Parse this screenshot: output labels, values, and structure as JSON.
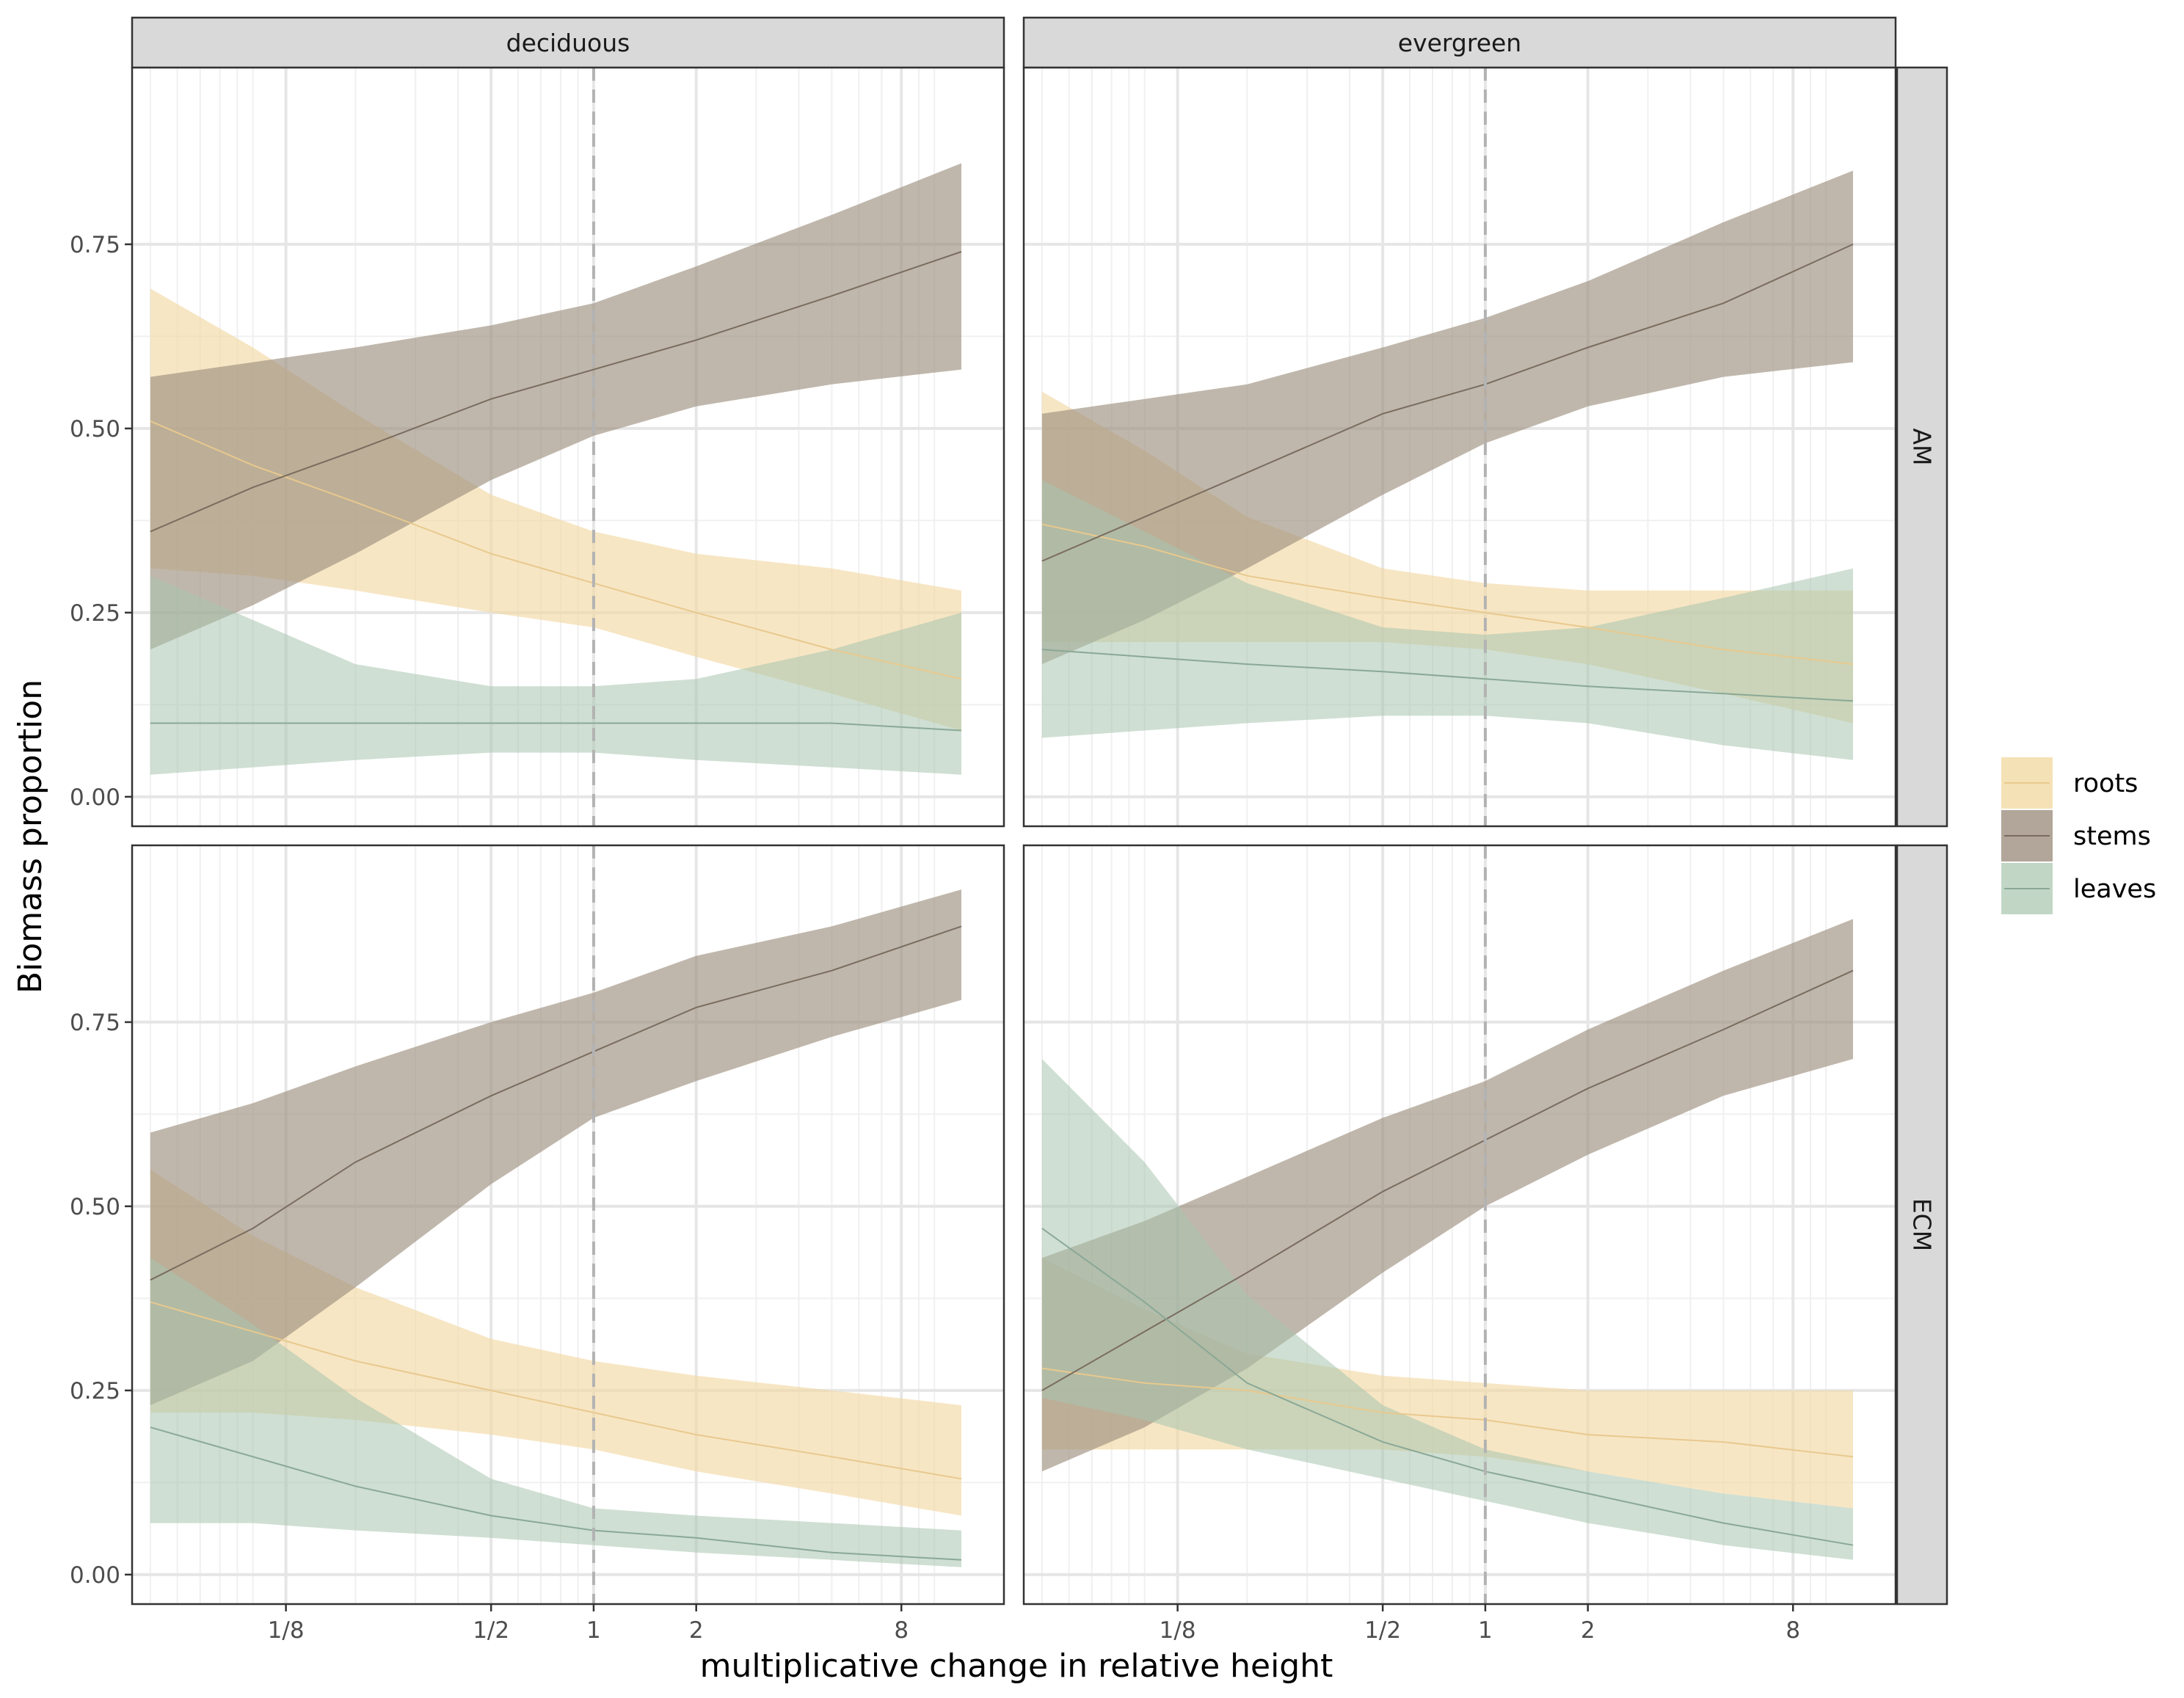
{
  "chart_data": {
    "type": "area",
    "facet_columns": [
      "deciduous",
      "evergreen"
    ],
    "facet_rows": [
      "AM",
      "ECM"
    ],
    "xlabel": "multiplicative change in relative height",
    "ylabel": "Biomass proportion",
    "x_scale": "log2",
    "x_ticks": [
      0.125,
      0.5,
      1,
      2,
      8
    ],
    "x_tick_labels": [
      "1/8",
      "1/2",
      "1",
      "2",
      "8"
    ],
    "xlim": [
      0.0442,
      16
    ],
    "y_ticks": [
      0,
      0.25,
      0.5,
      0.75
    ],
    "y_tick_labels": [
      "0.00",
      "0.25",
      "0.50",
      "0.75"
    ],
    "ylim": [
      -0.04,
      0.99
    ],
    "reference_line_x": 1,
    "grid": true,
    "legend_position": "right",
    "series_names": [
      "roots",
      "stems",
      "leaves"
    ],
    "colors": {
      "roots": "#f3d9a4",
      "roots_line": "#e8c98e",
      "stems": "#9e9080",
      "stems_line": "#7a6d5f",
      "leaves": "#a8c4ae",
      "leaves_line": "#8aa896"
    },
    "x": [
      0.05,
      0.1,
      0.2,
      0.5,
      1,
      2,
      5,
      12
    ],
    "panels": [
      {
        "column": "deciduous",
        "row": "AM",
        "series": [
          {
            "name": "roots",
            "fit": [
              0.51,
              0.45,
              0.4,
              0.33,
              0.29,
              0.25,
              0.2,
              0.16
            ],
            "lower": [
              0.31,
              0.3,
              0.28,
              0.25,
              0.23,
              0.19,
              0.14,
              0.09
            ],
            "upper": [
              0.69,
              0.61,
              0.52,
              0.41,
              0.36,
              0.33,
              0.31,
              0.28
            ]
          },
          {
            "name": "stems",
            "fit": [
              0.36,
              0.42,
              0.47,
              0.54,
              0.58,
              0.62,
              0.68,
              0.74
            ],
            "lower": [
              0.2,
              0.26,
              0.33,
              0.43,
              0.49,
              0.53,
              0.56,
              0.58
            ],
            "upper": [
              0.57,
              0.59,
              0.61,
              0.64,
              0.67,
              0.72,
              0.79,
              0.86
            ]
          },
          {
            "name": "leaves",
            "fit": [
              0.1,
              0.1,
              0.1,
              0.1,
              0.1,
              0.1,
              0.1,
              0.09
            ],
            "lower": [
              0.03,
              0.04,
              0.05,
              0.06,
              0.06,
              0.05,
              0.04,
              0.03
            ],
            "upper": [
              0.3,
              0.24,
              0.18,
              0.15,
              0.15,
              0.16,
              0.2,
              0.25
            ]
          }
        ]
      },
      {
        "column": "evergreen",
        "row": "AM",
        "series": [
          {
            "name": "roots",
            "fit": [
              0.37,
              0.34,
              0.3,
              0.27,
              0.25,
              0.23,
              0.2,
              0.18
            ],
            "lower": [
              0.21,
              0.21,
              0.21,
              0.21,
              0.2,
              0.18,
              0.14,
              0.1
            ],
            "upper": [
              0.55,
              0.47,
              0.38,
              0.31,
              0.29,
              0.28,
              0.28,
              0.28
            ]
          },
          {
            "name": "stems",
            "fit": [
              0.32,
              0.38,
              0.44,
              0.52,
              0.56,
              0.61,
              0.67,
              0.75
            ],
            "lower": [
              0.18,
              0.24,
              0.31,
              0.41,
              0.48,
              0.53,
              0.57,
              0.59
            ],
            "upper": [
              0.52,
              0.54,
              0.56,
              0.61,
              0.65,
              0.7,
              0.78,
              0.85
            ]
          },
          {
            "name": "leaves",
            "fit": [
              0.2,
              0.19,
              0.18,
              0.17,
              0.16,
              0.15,
              0.14,
              0.13
            ],
            "lower": [
              0.08,
              0.09,
              0.1,
              0.11,
              0.11,
              0.1,
              0.07,
              0.05
            ],
            "upper": [
              0.43,
              0.36,
              0.29,
              0.23,
              0.22,
              0.23,
              0.27,
              0.31
            ]
          }
        ]
      },
      {
        "column": "deciduous",
        "row": "ECM",
        "series": [
          {
            "name": "roots",
            "fit": [
              0.37,
              0.33,
              0.29,
              0.25,
              0.22,
              0.19,
              0.16,
              0.13
            ],
            "lower": [
              0.22,
              0.22,
              0.21,
              0.19,
              0.17,
              0.14,
              0.11,
              0.08
            ],
            "upper": [
              0.55,
              0.46,
              0.39,
              0.32,
              0.29,
              0.27,
              0.25,
              0.23
            ]
          },
          {
            "name": "stems",
            "fit": [
              0.4,
              0.47,
              0.56,
              0.65,
              0.71,
              0.77,
              0.82,
              0.88
            ],
            "lower": [
              0.23,
              0.29,
              0.39,
              0.53,
              0.62,
              0.67,
              0.73,
              0.78
            ],
            "upper": [
              0.6,
              0.64,
              0.69,
              0.75,
              0.79,
              0.84,
              0.88,
              0.93
            ]
          },
          {
            "name": "leaves",
            "fit": [
              0.2,
              0.16,
              0.12,
              0.08,
              0.06,
              0.05,
              0.03,
              0.02
            ],
            "lower": [
              0.07,
              0.07,
              0.06,
              0.05,
              0.04,
              0.03,
              0.02,
              0.01
            ],
            "upper": [
              0.43,
              0.34,
              0.24,
              0.13,
              0.09,
              0.08,
              0.07,
              0.06
            ]
          }
        ]
      },
      {
        "column": "evergreen",
        "row": "ECM",
        "series": [
          {
            "name": "roots",
            "fit": [
              0.28,
              0.26,
              0.25,
              0.22,
              0.21,
              0.19,
              0.18,
              0.16
            ],
            "lower": [
              0.17,
              0.17,
              0.17,
              0.17,
              0.16,
              0.14,
              0.11,
              0.09
            ],
            "upper": [
              0.43,
              0.36,
              0.3,
              0.27,
              0.26,
              0.25,
              0.25,
              0.25
            ]
          },
          {
            "name": "stems",
            "fit": [
              0.25,
              0.33,
              0.41,
              0.52,
              0.59,
              0.66,
              0.74,
              0.82
            ],
            "lower": [
              0.14,
              0.2,
              0.28,
              0.41,
              0.5,
              0.57,
              0.65,
              0.7
            ],
            "upper": [
              0.43,
              0.48,
              0.54,
              0.62,
              0.67,
              0.74,
              0.82,
              0.89
            ]
          },
          {
            "name": "leaves",
            "fit": [
              0.47,
              0.37,
              0.26,
              0.18,
              0.14,
              0.11,
              0.07,
              0.04
            ],
            "lower": [
              0.24,
              0.21,
              0.17,
              0.13,
              0.1,
              0.07,
              0.04,
              0.02
            ],
            "upper": [
              0.7,
              0.56,
              0.38,
              0.23,
              0.17,
              0.14,
              0.11,
              0.09
            ]
          }
        ]
      }
    ]
  }
}
